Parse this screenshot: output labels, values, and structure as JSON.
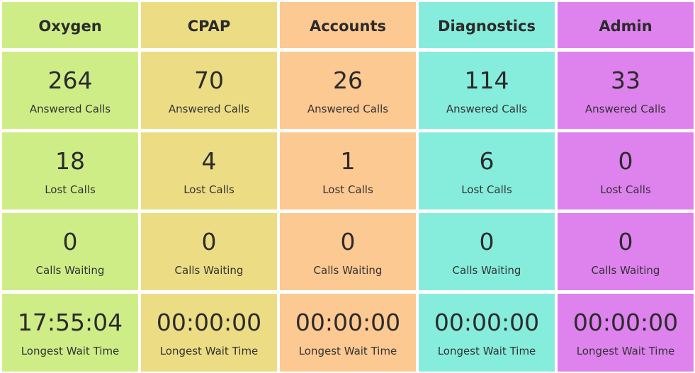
{
  "colors": {
    "oxygen": "#cfed87",
    "cpap": "#ecdd84",
    "accounts": "#fdc992",
    "diagnostics": "#86eddd",
    "admin": "#de82ee",
    "text": "#2b2b2b",
    "gap": "#ffffff"
  },
  "queues": [
    {
      "name": "Oxygen",
      "answered": {
        "value": "264",
        "label": "Answered Calls"
      },
      "lost": {
        "value": "18",
        "label": "Lost Calls"
      },
      "waiting": {
        "value": "0",
        "label": "Calls Waiting"
      },
      "longest_wait": {
        "value": "17:55:04",
        "label": "Longest Wait Time"
      }
    },
    {
      "name": "CPAP",
      "answered": {
        "value": "70",
        "label": "Answered Calls"
      },
      "lost": {
        "value": "4",
        "label": "Lost Calls"
      },
      "waiting": {
        "value": "0",
        "label": "Calls Waiting"
      },
      "longest_wait": {
        "value": "00:00:00",
        "label": "Longest Wait Time"
      }
    },
    {
      "name": "Accounts",
      "answered": {
        "value": "26",
        "label": "Answered Calls"
      },
      "lost": {
        "value": "1",
        "label": "Lost Calls"
      },
      "waiting": {
        "value": "0",
        "label": "Calls Waiting"
      },
      "longest_wait": {
        "value": "00:00:00",
        "label": "Longest Wait Time"
      }
    },
    {
      "name": "Diagnostics",
      "answered": {
        "value": "114",
        "label": "Answered Calls"
      },
      "lost": {
        "value": "6",
        "label": "Lost Calls"
      },
      "waiting": {
        "value": "0",
        "label": "Calls Waiting"
      },
      "longest_wait": {
        "value": "00:00:00",
        "label": "Longest Wait Time"
      }
    },
    {
      "name": "Admin",
      "answered": {
        "value": "33",
        "label": "Answered Calls"
      },
      "lost": {
        "value": "0",
        "label": "Lost Calls"
      },
      "waiting": {
        "value": "0",
        "label": "Calls Waiting"
      },
      "longest_wait": {
        "value": "00:00:00",
        "label": "Longest Wait Time"
      }
    }
  ]
}
